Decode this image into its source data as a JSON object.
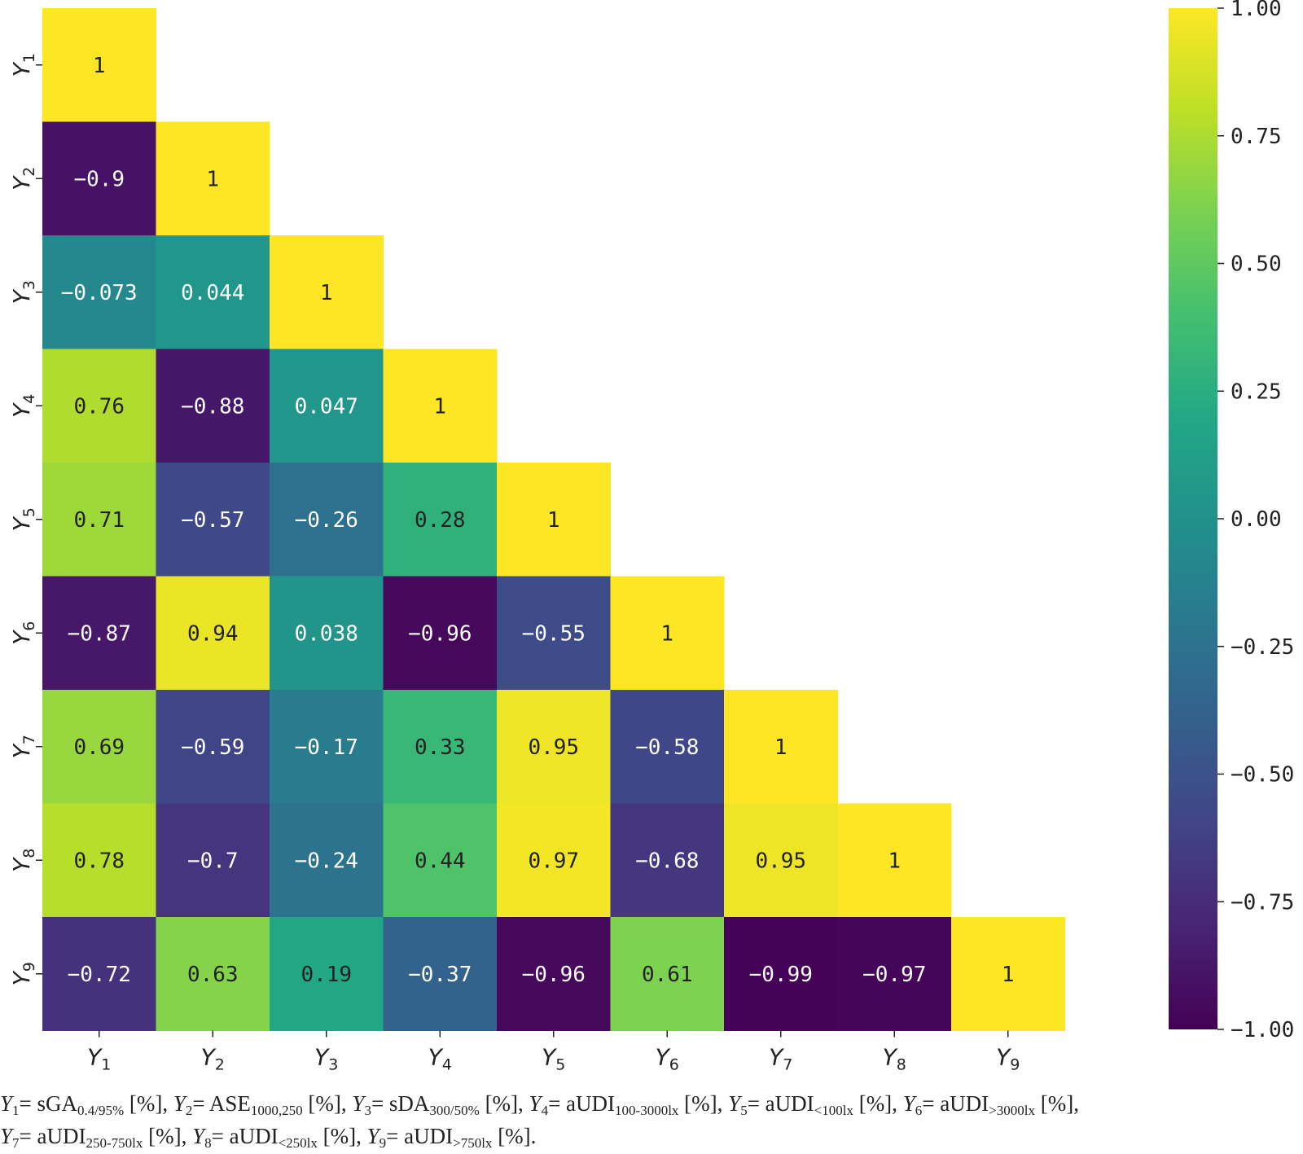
{
  "chart_data": {
    "type": "heatmap",
    "mask": "lower-triangle",
    "row_labels": [
      {
        "base": "Y",
        "sub": "1"
      },
      {
        "base": "Y",
        "sub": "2"
      },
      {
        "base": "Y",
        "sub": "3"
      },
      {
        "base": "Y",
        "sub": "4"
      },
      {
        "base": "Y",
        "sub": "5"
      },
      {
        "base": "Y",
        "sub": "6"
      },
      {
        "base": "Y",
        "sub": "7"
      },
      {
        "base": "Y",
        "sub": "8"
      },
      {
        "base": "Y",
        "sub": "9"
      }
    ],
    "col_labels": [
      {
        "base": "Y",
        "sub": "1"
      },
      {
        "base": "Y",
        "sub": "2"
      },
      {
        "base": "Y",
        "sub": "3"
      },
      {
        "base": "Y",
        "sub": "4"
      },
      {
        "base": "Y",
        "sub": "5"
      },
      {
        "base": "Y",
        "sub": "6"
      },
      {
        "base": "Y",
        "sub": "7"
      },
      {
        "base": "Y",
        "sub": "8"
      },
      {
        "base": "Y",
        "sub": "9"
      }
    ],
    "values": [
      [
        1
      ],
      [
        -0.9,
        1
      ],
      [
        -0.073,
        0.044,
        1
      ],
      [
        0.76,
        -0.88,
        0.047,
        1
      ],
      [
        0.71,
        -0.57,
        -0.26,
        0.28,
        1
      ],
      [
        -0.87,
        0.94,
        0.038,
        -0.96,
        -0.55,
        1
      ],
      [
        0.69,
        -0.59,
        -0.17,
        0.33,
        0.95,
        -0.58,
        1
      ],
      [
        0.78,
        -0.7,
        -0.24,
        0.44,
        0.97,
        -0.68,
        0.95,
        1
      ],
      [
        -0.72,
        0.63,
        0.19,
        -0.37,
        -0.96,
        0.61,
        -0.99,
        -0.97,
        1
      ]
    ],
    "colorbar": {
      "colormap": "viridis",
      "vmin": -1.0,
      "vmax": 1.0,
      "ticks": [
        "1.00",
        "0.75",
        "0.50",
        "0.25",
        "0.00",
        "−0.25",
        "−0.50",
        "−0.75",
        "−1.00"
      ],
      "tick_values": [
        1.0,
        0.75,
        0.5,
        0.25,
        0.0,
        -0.25,
        -0.5,
        -0.75,
        -1.0
      ]
    }
  },
  "caption": {
    "parts": [
      {
        "var": "Y",
        "vsub": "1",
        "eq": "= sGA",
        "sub": "0.4/95%",
        "unit": " [%], "
      },
      {
        "var": "Y",
        "vsub": "2",
        "eq": "= ASE",
        "sub": "1000,250",
        "unit": " [%], "
      },
      {
        "var": "Y",
        "vsub": "3",
        "eq": "= sDA",
        "sub": "300/50%",
        "unit": " [%], "
      },
      {
        "var": "Y",
        "vsub": "4",
        "eq": "= aUDI",
        "sub": "100-3000lx",
        "unit": " [%], "
      },
      {
        "var": "Y",
        "vsub": "5",
        "eq": "= aUDI",
        "sub": "<100lx",
        "unit": "  [%], "
      },
      {
        "var": "Y",
        "vsub": "6",
        "eq": "= aUDI",
        "sub": ">3000lx",
        "unit": "  [%],"
      },
      {
        "var": "Y",
        "vsub": "7",
        "eq": "= aUDI",
        "sub": "250-750lx",
        "unit": " [%], "
      },
      {
        "var": "Y",
        "vsub": "8",
        "eq": "= aUDI",
        "sub": "<250lx",
        "unit": "  [%], "
      },
      {
        "var": "Y",
        "vsub": "9",
        "eq": "= aUDI",
        "sub": ">750lx",
        "unit": "  [%]."
      }
    ],
    "line_break_after": 5
  }
}
